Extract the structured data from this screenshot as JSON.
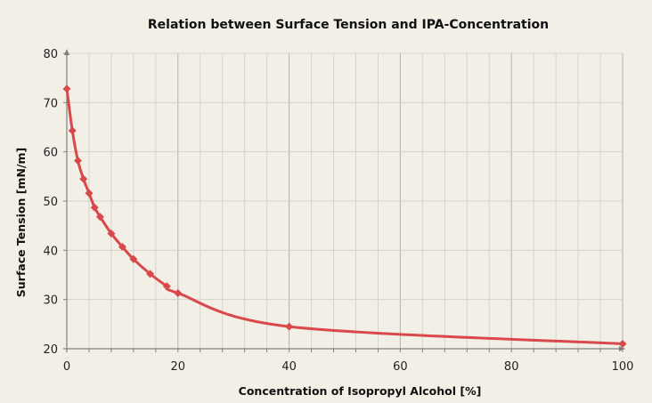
{
  "chart_data": {
    "type": "line",
    "title": "Relation between Surface Tension and IPA-Concentration",
    "xlabel": "Concentration of Isopropyl Alcohol  [%]",
    "ylabel": "Surface Tension [mN/m]",
    "xlim": [
      0,
      100
    ],
    "ylim": [
      20,
      80
    ],
    "xticks": [
      "0",
      "20",
      "40",
      "60",
      "80",
      "100"
    ],
    "yticks": [
      "20",
      "30",
      "40",
      "50",
      "60",
      "70",
      "80"
    ],
    "grid": true,
    "legend": "none",
    "series": [
      {
        "x": [
          0,
          1,
          2,
          3,
          4,
          5,
          6,
          8,
          10,
          12,
          15,
          18,
          20,
          40,
          100
        ],
        "y": [
          72.8,
          64.3,
          58.2,
          54.5,
          51.6,
          48.7,
          46.8,
          43.4,
          40.7,
          38.2,
          35.2,
          32.7,
          31.3,
          24.5,
          21.0
        ],
        "color": "#d9484a",
        "marker": "diamond"
      }
    ]
  },
  "colors": {
    "background": "#f2efe6",
    "grid": "#d6d3cb",
    "grid_major": "#b5b2ab",
    "axis": "#808080"
  }
}
